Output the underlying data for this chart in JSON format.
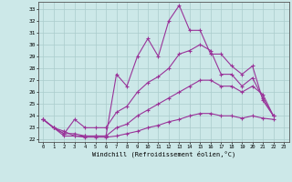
{
  "xlabel": "Windchill (Refroidissement éolien,°C)",
  "bg_color": "#cce8e8",
  "grid_color": "#aacccc",
  "line_color": "#993399",
  "xlim_min": -0.5,
  "xlim_max": 23.5,
  "ylim_min": 21.8,
  "ylim_max": 33.6,
  "xticks": [
    0,
    1,
    2,
    3,
    4,
    5,
    6,
    7,
    8,
    9,
    10,
    11,
    12,
    13,
    14,
    15,
    16,
    17,
    18,
    19,
    20,
    21,
    22,
    23
  ],
  "yticks": [
    22,
    23,
    24,
    25,
    26,
    27,
    28,
    29,
    30,
    31,
    32,
    33
  ],
  "series": [
    {
      "x": [
        0,
        1,
        2,
        3,
        4,
        5,
        6,
        7,
        8,
        9,
        10,
        11,
        12,
        13,
        14,
        15,
        16,
        17,
        18,
        19,
        20,
        21,
        22
      ],
      "y": [
        23.7,
        23.0,
        22.7,
        22.3,
        22.3,
        22.3,
        22.3,
        27.5,
        26.5,
        29.0,
        30.5,
        29.0,
        32.0,
        33.3,
        31.2,
        31.2,
        29.2,
        29.2,
        28.2,
        27.5,
        28.2,
        25.3,
        24.0
      ]
    },
    {
      "x": [
        0,
        1,
        2,
        3,
        4,
        5,
        6,
        7,
        8,
        9,
        10,
        11,
        12,
        13,
        14,
        15,
        16,
        17,
        18,
        19,
        20,
        21,
        22
      ],
      "y": [
        23.7,
        23.0,
        22.5,
        23.7,
        23.0,
        23.0,
        23.0,
        24.3,
        24.8,
        26.0,
        26.8,
        27.3,
        28.0,
        29.2,
        29.5,
        30.0,
        29.5,
        27.5,
        27.5,
        26.5,
        27.2,
        25.5,
        24.0
      ]
    },
    {
      "x": [
        0,
        1,
        2,
        3,
        4,
        5,
        6,
        7,
        8,
        9,
        10,
        11,
        12,
        13,
        14,
        15,
        16,
        17,
        18,
        19,
        20,
        21,
        22
      ],
      "y": [
        23.7,
        23.0,
        22.5,
        22.5,
        22.3,
        22.3,
        22.3,
        23.0,
        23.3,
        24.0,
        24.5,
        25.0,
        25.5,
        26.0,
        26.5,
        27.0,
        27.0,
        26.5,
        26.5,
        26.0,
        26.5,
        25.8,
        24.0
      ]
    },
    {
      "x": [
        0,
        1,
        2,
        3,
        4,
        5,
        6,
        7,
        8,
        9,
        10,
        11,
        12,
        13,
        14,
        15,
        16,
        17,
        18,
        19,
        20,
        21,
        22
      ],
      "y": [
        23.7,
        23.0,
        22.3,
        22.3,
        22.2,
        22.2,
        22.2,
        22.3,
        22.5,
        22.7,
        23.0,
        23.2,
        23.5,
        23.7,
        24.0,
        24.2,
        24.2,
        24.0,
        24.0,
        23.8,
        24.0,
        23.8,
        23.7
      ]
    }
  ]
}
